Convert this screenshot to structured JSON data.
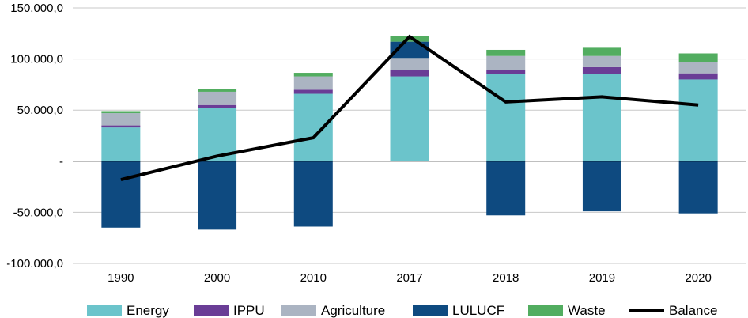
{
  "chart_data": {
    "type": "bar",
    "stacked": true,
    "categories": [
      "1990",
      "2000",
      "2010",
      "2017",
      "2018",
      "2019",
      "2020"
    ],
    "y_tick_labels": [
      "150.000,0",
      "100.000,0",
      "50.000,0",
      "-",
      "-50.000,0",
      "-100.000,0"
    ],
    "y_tick_values": [
      150000,
      100000,
      50000,
      0,
      -50000,
      -100000
    ],
    "ylim": [
      -100000,
      150000
    ],
    "grid": true,
    "legend_position": "bottom",
    "series": [
      {
        "name": "Energy",
        "kind": "bar",
        "color": "#6bc4cb",
        "values": [
          33000,
          52000,
          66000,
          83000,
          85000,
          85000,
          80000
        ]
      },
      {
        "name": "IPPU",
        "kind": "bar",
        "color": "#6a3d96",
        "values": [
          2000,
          3000,
          4000,
          6000,
          4500,
          7000,
          6000
        ]
      },
      {
        "name": "Agriculture",
        "kind": "bar",
        "color": "#abb4c2",
        "values": [
          12000,
          13000,
          13000,
          12000,
          13500,
          11000,
          11000
        ]
      },
      {
        "name": "LULUCF",
        "kind": "bar",
        "color": "#0e4a80",
        "values": [
          -65000,
          -67000,
          -64000,
          16000,
          -53000,
          -49000,
          -51000
        ]
      },
      {
        "name": "Waste",
        "kind": "bar",
        "color": "#52ad60",
        "values": [
          2000,
          3000,
          3500,
          5500,
          6000,
          8000,
          8500
        ]
      },
      {
        "name": "Balance",
        "kind": "line",
        "color": "#000000",
        "values": [
          -18000,
          5000,
          23000,
          122000,
          58000,
          63000,
          55000
        ]
      }
    ]
  }
}
